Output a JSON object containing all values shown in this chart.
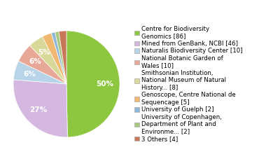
{
  "labels": [
    "Centre for Biodiversity\nGenomics [86]",
    "Mined from GenBank, NCBI [46]",
    "Naturalis Biodiversity Center [10]",
    "National Botanic Garden of\nWales [10]",
    "Smithsonian Institution,\nNational Museum of Natural\nHistory... [8]",
    "Genoscope, Centre National de\nSequencage [5]",
    "University of Guelph [2]",
    "University of Copenhagen,\nDepartment of Plant and\nEnvironme... [2]",
    "3 Others [4]"
  ],
  "values": [
    86,
    46,
    10,
    10,
    8,
    5,
    2,
    2,
    4
  ],
  "colors": [
    "#8dc63f",
    "#d4b8e0",
    "#b8d4e8",
    "#e8a898",
    "#d8d898",
    "#f0b870",
    "#90b8d8",
    "#a8c880",
    "#c87858"
  ],
  "pct_threshold": 3,
  "background_color": "#ffffff",
  "legend_fontsize": 6.2,
  "autopct_fontsize": 7.5
}
